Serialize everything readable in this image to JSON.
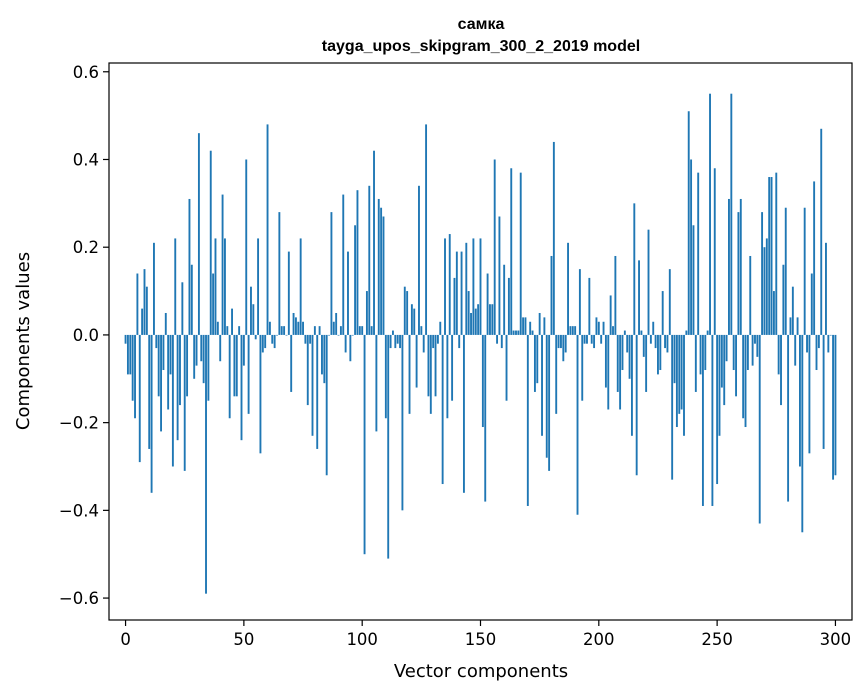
{
  "chart_data": {
    "type": "bar",
    "title": "самка",
    "subtitle": "tayga_upos_skipgram_300_2_2019 model",
    "xlabel": "Vector components",
    "ylabel": "Components values",
    "xlim": [
      -7,
      307
    ],
    "ylim": [
      -0.65,
      0.62
    ],
    "xticks": [
      0,
      50,
      100,
      150,
      200,
      250,
      300
    ],
    "xtick_labels": [
      "0",
      "50",
      "100",
      "150",
      "200",
      "250",
      "300"
    ],
    "yticks": [
      -0.6,
      -0.4,
      -0.2,
      0.0,
      0.2,
      0.4,
      0.6
    ],
    "ytick_labels": [
      "−0.6",
      "−0.4",
      "−0.2",
      "0.0",
      "0.2",
      "0.4",
      "0.6"
    ],
    "grid": false,
    "color": "#1f77b4",
    "x_start": 0,
    "values": [
      -0.02,
      -0.09,
      -0.09,
      -0.15,
      -0.19,
      0.14,
      -0.29,
      0.06,
      0.15,
      0.11,
      -0.26,
      -0.36,
      0.21,
      -0.03,
      -0.14,
      -0.22,
      -0.08,
      0.05,
      -0.17,
      -0.09,
      -0.3,
      0.22,
      -0.24,
      -0.16,
      0.12,
      -0.31,
      -0.14,
      0.31,
      0.16,
      -0.1,
      -0.07,
      0.46,
      -0.06,
      -0.11,
      -0.59,
      -0.15,
      0.42,
      0.14,
      0.22,
      0.03,
      -0.06,
      0.32,
      0.22,
      0.02,
      -0.19,
      0.06,
      -0.14,
      -0.14,
      0.02,
      -0.24,
      -0.07,
      0.4,
      -0.18,
      0.11,
      0.07,
      -0.01,
      0.22,
      -0.27,
      -0.04,
      -0.03,
      0.48,
      0.03,
      -0.02,
      -0.03,
      0.0,
      0.28,
      0.02,
      0.02,
      0.0,
      0.19,
      -0.13,
      0.05,
      0.04,
      0.03,
      0.22,
      0.03,
      -0.02,
      -0.16,
      -0.02,
      -0.23,
      0.02,
      -0.26,
      0.02,
      -0.09,
      -0.11,
      -0.32,
      0.0,
      0.28,
      0.03,
      0.05,
      0.0,
      0.02,
      0.32,
      -0.04,
      0.19,
      -0.06,
      0.0,
      0.25,
      0.33,
      0.02,
      0.02,
      -0.5,
      0.1,
      0.34,
      0.02,
      0.42,
      -0.22,
      0.31,
      0.29,
      0.27,
      -0.19,
      -0.51,
      -0.03,
      0.01,
      -0.03,
      -0.02,
      -0.03,
      -0.4,
      0.11,
      0.1,
      -0.18,
      0.07,
      0.06,
      -0.12,
      0.34,
      0.02,
      -0.04,
      0.48,
      -0.14,
      -0.18,
      -0.03,
      -0.14,
      -0.02,
      0.03,
      -0.34,
      0.22,
      -0.19,
      0.23,
      -0.15,
      0.13,
      0.19,
      -0.03,
      0.19,
      -0.36,
      0.21,
      0.1,
      0.05,
      0.22,
      0.06,
      0.07,
      0.22,
      -0.21,
      -0.38,
      0.14,
      0.07,
      0.07,
      0.4,
      -0.02,
      0.27,
      -0.03,
      0.16,
      -0.15,
      0.13,
      0.38,
      0.01,
      0.01,
      0.01,
      0.37,
      0.04,
      0.04,
      -0.39,
      0.03,
      0.01,
      -0.13,
      -0.11,
      0.05,
      -0.23,
      0.04,
      -0.28,
      -0.31,
      0.18,
      0.44,
      -0.18,
      -0.03,
      -0.03,
      -0.06,
      -0.04,
      0.21,
      0.02,
      0.02,
      0.02,
      -0.41,
      0.15,
      -0.15,
      -0.02,
      -0.02,
      0.13,
      -0.02,
      -0.03,
      0.04,
      0.03,
      -0.02,
      0.03,
      -0.12,
      -0.17,
      0.09,
      0.02,
      0.18,
      -0.13,
      -0.17,
      -0.08,
      0.01,
      -0.04,
      -0.1,
      -0.23,
      0.3,
      -0.32,
      0.17,
      0.01,
      -0.05,
      -0.13,
      0.24,
      -0.02,
      0.03,
      -0.03,
      -0.09,
      -0.08,
      0.1,
      -0.03,
      -0.04,
      0.15,
      -0.33,
      -0.11,
      -0.21,
      -0.18,
      -0.17,
      -0.23,
      0.01,
      0.51,
      0.4,
      0.25,
      -0.13,
      0.37,
      -0.09,
      -0.39,
      -0.08,
      0.01,
      0.55,
      -0.39,
      0.38,
      -0.34,
      -0.23,
      -0.12,
      -0.16,
      -0.06,
      0.31,
      0.55,
      -0.08,
      -0.14,
      0.28,
      0.31,
      -0.19,
      -0.21,
      -0.08,
      0.18,
      -0.07,
      -0.02,
      -0.05,
      -0.43,
      0.28,
      0.2,
      0.22,
      0.36,
      0.36,
      0.1,
      0.37,
      -0.09,
      -0.16,
      0.16,
      0.29,
      -0.38,
      0.04,
      0.11,
      -0.07,
      0.04,
      -0.3,
      -0.45,
      0.29,
      -0.04,
      -0.27,
      0.14,
      0.35,
      -0.08,
      -0.03,
      0.47,
      -0.26,
      0.21,
      -0.04,
      0.0,
      -0.33,
      -0.32
    ]
  }
}
